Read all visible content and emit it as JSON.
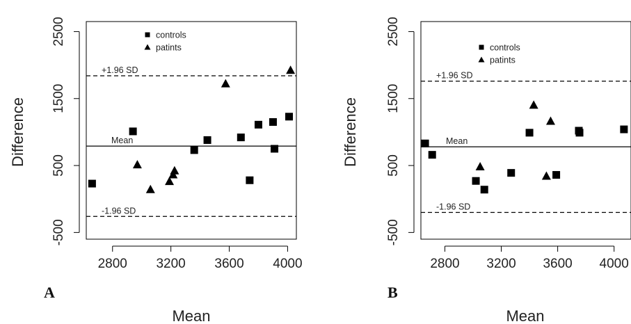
{
  "chart_data": [
    {
      "type": "scatter",
      "panel_label": "A",
      "xlabel": "Mean",
      "ylabel": "Difference",
      "xlim": [
        2620,
        4060
      ],
      "ylim": [
        -600,
        2650
      ],
      "xticks": [
        "2800",
        "3200",
        "3600",
        "4000"
      ],
      "xtick_values": [
        2800,
        3200,
        3600,
        4000
      ],
      "yticks": [
        "-500",
        "500",
        "1500",
        "2500"
      ],
      "ytick_values": [
        -500,
        500,
        1500,
        2500
      ],
      "reference_lines": [
        {
          "label": "+1.96 SD",
          "value": 1840,
          "style": "dashed"
        },
        {
          "label": "Mean",
          "value": 790,
          "style": "solid"
        },
        {
          "label": "-1.96 SD",
          "value": -260,
          "style": "dashed"
        }
      ],
      "legend": {
        "position": "top-center",
        "entries": [
          "controls",
          "patints"
        ]
      },
      "series": [
        {
          "name": "controls",
          "marker": "square",
          "x": [
            2660,
            2940,
            3360,
            3450,
            3680,
            3740,
            3800,
            3900,
            3910,
            4010
          ],
          "y": [
            230,
            1010,
            730,
            880,
            920,
            280,
            1110,
            1150,
            750,
            1230
          ]
        },
        {
          "name": "patints",
          "marker": "triangle",
          "x": [
            2970,
            3060,
            3190,
            3215,
            3225,
            3575,
            4020
          ],
          "y": [
            510,
            140,
            260,
            360,
            420,
            1720,
            1920
          ]
        }
      ]
    },
    {
      "type": "scatter",
      "panel_label": "B",
      "xlabel": "Mean",
      "ylabel": "Difference",
      "xlim": [
        2630,
        4120
      ],
      "ylim": [
        -600,
        2650
      ],
      "xticks": [
        "2800",
        "3200",
        "3600",
        "4000"
      ],
      "xtick_values": [
        2800,
        3200,
        3600,
        4000
      ],
      "yticks": [
        "-500",
        "500",
        "1500",
        "2500"
      ],
      "ytick_values": [
        -500,
        500,
        1500,
        2500
      ],
      "reference_lines": [
        {
          "label": "+1.96 SD",
          "value": 1760,
          "style": "dashed"
        },
        {
          "label": "Mean",
          "value": 780,
          "style": "solid"
        },
        {
          "label": "-1.96 SD",
          "value": -200,
          "style": "dashed"
        }
      ],
      "legend": {
        "position": "top-center",
        "entries": [
          "controls",
          "patints"
        ]
      },
      "series": [
        {
          "name": "controls",
          "marker": "square",
          "x": [
            2660,
            2710,
            3020,
            3080,
            3270,
            3400,
            3590,
            3750,
            3755,
            4070
          ],
          "y": [
            830,
            660,
            270,
            140,
            390,
            990,
            360,
            1020,
            990,
            1040
          ]
        },
        {
          "name": "patints",
          "marker": "triangle",
          "x": [
            3050,
            3430,
            3520,
            3550
          ],
          "y": [
            480,
            1400,
            340,
            1160
          ]
        }
      ]
    }
  ]
}
